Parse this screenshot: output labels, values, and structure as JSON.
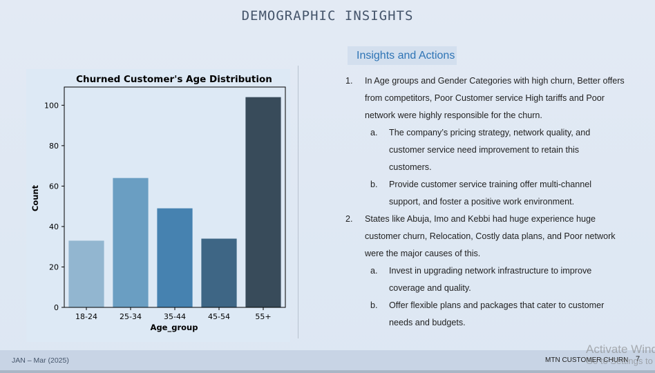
{
  "slide": {
    "title": "DEMOGRAPHIC INSIGHTS"
  },
  "chart_data": {
    "type": "bar",
    "title": "Churned Customer's Age Distribution",
    "xlabel": "Age_group",
    "ylabel": "Count",
    "categories": [
      "18-24",
      "25-34",
      "35-44",
      "45-54",
      "55+"
    ],
    "values": [
      33,
      64,
      49,
      34,
      104
    ],
    "ylim": [
      0,
      109
    ],
    "yticks": [
      0,
      20,
      40,
      60,
      80,
      100
    ],
    "colors": [
      "#92b6d0",
      "#6a9ec2",
      "#4682b0",
      "#3e6685",
      "#384b5a"
    ],
    "grid": false
  },
  "insights": {
    "header": "Insights and Actions",
    "items": [
      {
        "num": "1.",
        "lines": [
          "In Age groups and Gender Categories with high churn, Better offers",
          "from competitors, Poor Customer service High tariffs and Poor",
          "network were highly responsible for the churn."
        ],
        "subs": [
          {
            "num": "a.",
            "lines": [
              "The company’s pricing strategy, network quality, and",
              "customer service need improvement to retain this",
              "customers."
            ]
          },
          {
            "num": "b.",
            "lines": [
              "Provide customer service training offer multi-channel",
              "support, and foster a positive work environment."
            ]
          }
        ]
      },
      {
        "num": "2.",
        "lines": [
          "States like Abuja, Imo and Kebbi had huge experience huge",
          "customer churn, Relocation, Costly data plans, and Poor network",
          "were the major causes of this."
        ],
        "subs": [
          {
            "num": "a.",
            "lines": [
              "Invest in upgrading network infrastructure to improve",
              "coverage and quality."
            ]
          },
          {
            "num": "b.",
            "lines": [
              "Offer flexible plans and packages that cater to customer",
              "needs and budgets."
            ]
          }
        ]
      }
    ]
  },
  "footer": {
    "date": "JAN – Mar (2025)",
    "project": "MTN CUSTOMER CHURN",
    "page": "7"
  },
  "watermark": {
    "line1": "Activate Windows",
    "line2": "Go to Settings to activate Windows."
  }
}
